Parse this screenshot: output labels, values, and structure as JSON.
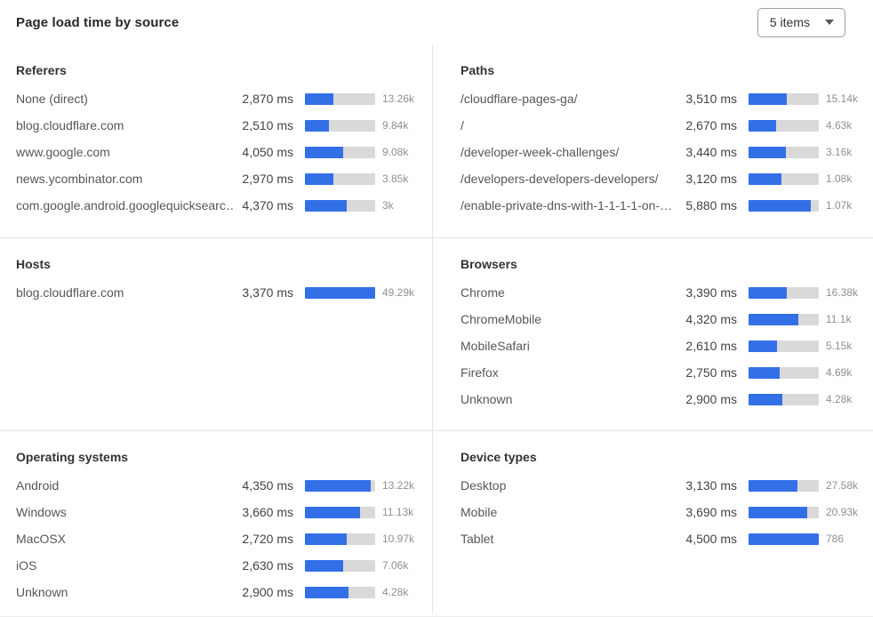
{
  "header": {
    "title": "Page load time by source",
    "dropdown": {
      "value": "5 items"
    }
  },
  "colors": {
    "bar_fill": "#3370E8",
    "bar_track": "#D9D9D9",
    "divider": "#E4E4E4"
  },
  "chart_data": {
    "type": "bar",
    "unit": "ms",
    "panels": [
      {
        "title": "Referers",
        "rows": [
          {
            "label": "None (direct)",
            "ms": "2,870 ms",
            "ms_value": 2870,
            "count": "13.26k",
            "bar_pct": 40
          },
          {
            "label": "blog.cloudflare.com",
            "ms": "2,510 ms",
            "ms_value": 2510,
            "count": "9.84k",
            "bar_pct": 34
          },
          {
            "label": "www.google.com",
            "ms": "4,050 ms",
            "ms_value": 4050,
            "count": "9.08k",
            "bar_pct": 55
          },
          {
            "label": "news.ycombinator.com",
            "ms": "2,970 ms",
            "ms_value": 2970,
            "count": "3.85k",
            "bar_pct": 41
          },
          {
            "label": "com.google.android.googlequicksearc…",
            "ms": "4,370 ms",
            "ms_value": 4370,
            "count": "3k",
            "bar_pct": 60
          }
        ]
      },
      {
        "title": "Paths",
        "rows": [
          {
            "label": "/cloudflare-pages-ga/",
            "ms": "3,510 ms",
            "ms_value": 3510,
            "count": "15.14k",
            "bar_pct": 54
          },
          {
            "label": "/",
            "ms": "2,670 ms",
            "ms_value": 2670,
            "count": "4.63k",
            "bar_pct": 39
          },
          {
            "label": "/developer-week-challenges/",
            "ms": "3,440 ms",
            "ms_value": 3440,
            "count": "3.16k",
            "bar_pct": 53
          },
          {
            "label": "/developers-developers-developers/",
            "ms": "3,120 ms",
            "ms_value": 3120,
            "count": "1.08k",
            "bar_pct": 47
          },
          {
            "label": "/enable-private-dns-with-1-1-1-1-on-…",
            "ms": "5,880 ms",
            "ms_value": 5880,
            "count": "1.07k",
            "bar_pct": 89
          }
        ]
      },
      {
        "title": "Hosts",
        "rows": [
          {
            "label": "blog.cloudflare.com",
            "ms": "3,370 ms",
            "ms_value": 3370,
            "count": "49.29k",
            "bar_pct": 100
          }
        ]
      },
      {
        "title": "Browsers",
        "rows": [
          {
            "label": "Chrome",
            "ms": "3,390 ms",
            "ms_value": 3390,
            "count": "16.38k",
            "bar_pct": 55
          },
          {
            "label": "ChromeMobile",
            "ms": "4,320 ms",
            "ms_value": 4320,
            "count": "11.1k",
            "bar_pct": 71
          },
          {
            "label": "MobileSafari",
            "ms": "2,610 ms",
            "ms_value": 2610,
            "count": "5.15k",
            "bar_pct": 41
          },
          {
            "label": "Firefox",
            "ms": "2,750 ms",
            "ms_value": 2750,
            "count": "4.69k",
            "bar_pct": 44
          },
          {
            "label": "Unknown",
            "ms": "2,900 ms",
            "ms_value": 2900,
            "count": "4.28k",
            "bar_pct": 48
          }
        ]
      },
      {
        "title": "Operating systems",
        "rows": [
          {
            "label": "Android",
            "ms": "4,350 ms",
            "ms_value": 4350,
            "count": "13.22k",
            "bar_pct": 94
          },
          {
            "label": "Windows",
            "ms": "3,660 ms",
            "ms_value": 3660,
            "count": "11.13k",
            "bar_pct": 78
          },
          {
            "label": "MacOSX",
            "ms": "2,720 ms",
            "ms_value": 2720,
            "count": "10.97k",
            "bar_pct": 59
          },
          {
            "label": "iOS",
            "ms": "2,630 ms",
            "ms_value": 2630,
            "count": "7.06k",
            "bar_pct": 55
          },
          {
            "label": "Unknown",
            "ms": "2,900 ms",
            "ms_value": 2900,
            "count": "4.28k",
            "bar_pct": 62
          }
        ]
      },
      {
        "title": "Device types",
        "rows": [
          {
            "label": "Desktop",
            "ms": "3,130 ms",
            "ms_value": 3130,
            "count": "27.58k",
            "bar_pct": 70
          },
          {
            "label": "Mobile",
            "ms": "3,690 ms",
            "ms_value": 3690,
            "count": "20.93k",
            "bar_pct": 83
          },
          {
            "label": "Tablet",
            "ms": "4,500 ms",
            "ms_value": 4500,
            "count": "786",
            "bar_pct": 100
          }
        ]
      }
    ]
  }
}
